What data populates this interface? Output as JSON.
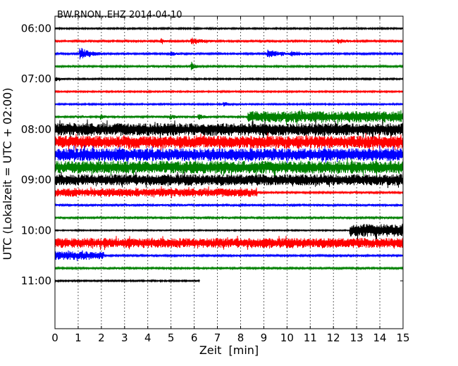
{
  "chart_data": {
    "type": "line",
    "title": "BW.RNON..EHZ 2014-04-10",
    "xlabel": "Zeit  [min]",
    "ylabel": "UTC (Lokalzeit = UTC + 02:00)",
    "xlim": [
      0,
      15
    ],
    "x_ticks": [
      0,
      1,
      2,
      3,
      4,
      5,
      6,
      7,
      8,
      9,
      10,
      11,
      12,
      13,
      14,
      15
    ],
    "x_tick_labels": [
      "0",
      "1",
      "2",
      "3",
      "4",
      "5",
      "6",
      "7",
      "8",
      "9",
      "10",
      "11",
      "12",
      "13",
      "14",
      "15"
    ],
    "y_tick_labels": [
      "06:00",
      "07:00",
      "08:00",
      "09:00",
      "10:00",
      "11:00"
    ],
    "y_tick_hours": [
      6,
      7,
      8,
      9,
      10,
      11
    ],
    "grid": "vertical dotted",
    "trace_colors": [
      "#000000",
      "#ff0000",
      "#0000ff",
      "#008000"
    ],
    "traces": [
      {
        "start": "06:00",
        "color": "#000000",
        "xmax": 15,
        "level": 1.0,
        "segments": [],
        "bursts": []
      },
      {
        "start": "06:15",
        "color": "#ff0000",
        "xmax": 15,
        "level": 1.2,
        "segments": [],
        "bursts": [
          [
            4.6,
            0.3,
            4
          ],
          [
            5.9,
            1.0,
            4
          ],
          [
            12.2,
            0.7,
            3
          ]
        ]
      },
      {
        "start": "06:30",
        "color": "#0000ff",
        "xmax": 15,
        "level": 1.2,
        "segments": [],
        "bursts": [
          [
            1.1,
            0.9,
            8
          ],
          [
            5.0,
            0.4,
            3
          ],
          [
            9.2,
            1.2,
            5
          ],
          [
            10.2,
            1.0,
            3
          ]
        ]
      },
      {
        "start": "06:45",
        "color": "#008000",
        "xmax": 15,
        "level": 1.2,
        "segments": [],
        "bursts": [
          [
            5.9,
            0.3,
            6
          ]
        ]
      },
      {
        "start": "07:00",
        "color": "#000000",
        "xmax": 15,
        "level": 1.0,
        "segments": [],
        "bursts": [
          [
            0.0,
            0.5,
            3
          ]
        ]
      },
      {
        "start": "07:15",
        "color": "#ff0000",
        "xmax": 15,
        "level": 1.0,
        "segments": [],
        "bursts": []
      },
      {
        "start": "07:30",
        "color": "#0000ff",
        "xmax": 15,
        "level": 1.0,
        "segments": [],
        "bursts": [
          [
            7.3,
            0.4,
            3
          ]
        ]
      },
      {
        "start": "07:45",
        "color": "#008000",
        "xmax": 15,
        "level": 1.4,
        "segments": [
          [
            8.3,
            15,
            8
          ]
        ],
        "bursts": [
          [
            2.0,
            0.3,
            3
          ],
          [
            5.0,
            0.4,
            3
          ],
          [
            6.2,
            0.4,
            3
          ]
        ]
      },
      {
        "start": "08:00",
        "color": "#000000",
        "xmax": 15,
        "level": 9,
        "segments": [],
        "bursts": [
          [
            1.4,
            0.2,
            2
          ]
        ]
      },
      {
        "start": "08:15",
        "color": "#ff0000",
        "xmax": 15,
        "level": 9,
        "segments": [],
        "bursts": [
          [
            3.2,
            0.3,
            1.4
          ]
        ]
      },
      {
        "start": "08:30",
        "color": "#0000ff",
        "xmax": 15,
        "level": 9,
        "segments": [],
        "bursts": [
          [
            3.0,
            0.3,
            1.4
          ]
        ]
      },
      {
        "start": "08:45",
        "color": "#008000",
        "xmax": 15,
        "level": 9,
        "segments": [],
        "bursts": []
      },
      {
        "start": "09:00",
        "color": "#000000",
        "xmax": 15,
        "level": 8,
        "segments": [],
        "bursts": []
      },
      {
        "start": "09:15",
        "color": "#ff0000",
        "xmax": 15,
        "level": 1.2,
        "segments": [
          [
            0,
            8.7,
            6
          ]
        ],
        "bursts": [
          [
            8.6,
            0.3,
            2
          ]
        ]
      },
      {
        "start": "09:30",
        "color": "#0000ff",
        "xmax": 15,
        "level": 1.4,
        "segments": [],
        "bursts": []
      },
      {
        "start": "09:45",
        "color": "#008000",
        "xmax": 15,
        "level": 1.2,
        "segments": [],
        "bursts": []
      },
      {
        "start": "10:00",
        "color": "#000000",
        "xmax": 15,
        "level": 0.8,
        "segments": [
          [
            12.7,
            15,
            9
          ]
        ],
        "bursts": []
      },
      {
        "start": "10:15",
        "color": "#ff0000",
        "xmax": 15,
        "level": 7,
        "segments": [],
        "bursts": []
      },
      {
        "start": "10:30",
        "color": "#0000ff",
        "xmax": 15,
        "level": 1.2,
        "segments": [
          [
            0,
            2.1,
            6
          ]
        ],
        "bursts": []
      },
      {
        "start": "10:45",
        "color": "#008000",
        "xmax": 15,
        "level": 1.2,
        "segments": [],
        "bursts": []
      },
      {
        "start": "11:00",
        "color": "#000000",
        "xmax": 6.25,
        "level": 1.0,
        "segments": [],
        "bursts": []
      }
    ]
  }
}
